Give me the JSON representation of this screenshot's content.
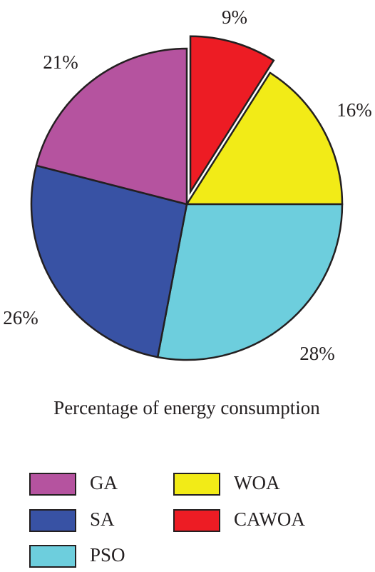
{
  "chart_data": {
    "type": "pie",
    "title": "",
    "caption": "Percentage of energy consumption",
    "slices": [
      {
        "label": "CAWOA",
        "value": 9,
        "display": "9%",
        "color": "#ed1c24",
        "exploded": true
      },
      {
        "label": "WOA",
        "value": 16,
        "display": "16%",
        "color": "#f2eb17",
        "exploded": false
      },
      {
        "label": "PSO",
        "value": 28,
        "display": "28%",
        "color": "#6dcedd",
        "exploded": false
      },
      {
        "label": "SA",
        "value": 26,
        "display": "26%",
        "color": "#3852a4",
        "exploded": false
      },
      {
        "label": "GA",
        "value": 21,
        "display": "21%",
        "color": "#b5539f",
        "exploded": false
      }
    ],
    "legend": {
      "placement": "bottom",
      "entries": [
        {
          "label": "GA",
          "color": "#b5539f"
        },
        {
          "label": "WOA",
          "color": "#f2eb17"
        },
        {
          "label": "SA",
          "color": "#3852a4"
        },
        {
          "label": "CAWOA",
          "color": "#ed1c24"
        },
        {
          "label": "PSO",
          "color": "#6dcedd"
        }
      ]
    },
    "start_direction": "top",
    "direction": "clockwise",
    "outline_color": "#231f20"
  }
}
